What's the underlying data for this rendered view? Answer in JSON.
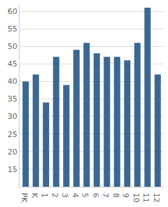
{
  "chart_data": {
    "type": "bar",
    "categories": [
      "PK",
      "K",
      "1",
      "2",
      "3",
      "4",
      "5",
      "6",
      "7",
      "8",
      "9",
      "10",
      "11",
      "12"
    ],
    "values": [
      40,
      42,
      34,
      47,
      39,
      49,
      51,
      48,
      47,
      47,
      46,
      51,
      61,
      42
    ],
    "color": "#3a6891",
    "ylim": [
      10,
      62
    ],
    "yticks": [
      15,
      20,
      25,
      30,
      35,
      40,
      45,
      50,
      55,
      60
    ],
    "grid": true
  }
}
